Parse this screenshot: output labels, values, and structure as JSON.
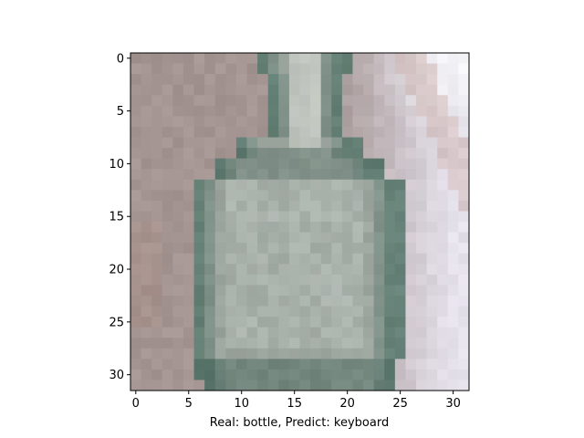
{
  "chart_data": {
    "type": "heatmap",
    "content": "pixelated 32x32 image of a glass bottle",
    "grid_size": [
      32,
      32
    ],
    "x_ticks": [
      0,
      5,
      10,
      15,
      20,
      25,
      30
    ],
    "y_ticks": [
      0,
      5,
      10,
      15,
      20,
      25,
      30
    ],
    "xlim": [
      -0.5,
      31.5
    ],
    "ylim": [
      31.5,
      -0.5
    ],
    "xlabel": "Real: bottle, Predict: keyboard",
    "ylabel": "",
    "title": "",
    "grid": false,
    "colors": {
      "background_left": "#a49593",
      "background_right": "#e6e2ec",
      "highlight_top_right": "#f5f5f8",
      "bottle_body": "#9aa59d",
      "bottle_edge": "#5e7d72",
      "bottle_dark": "#4a6a60"
    }
  }
}
